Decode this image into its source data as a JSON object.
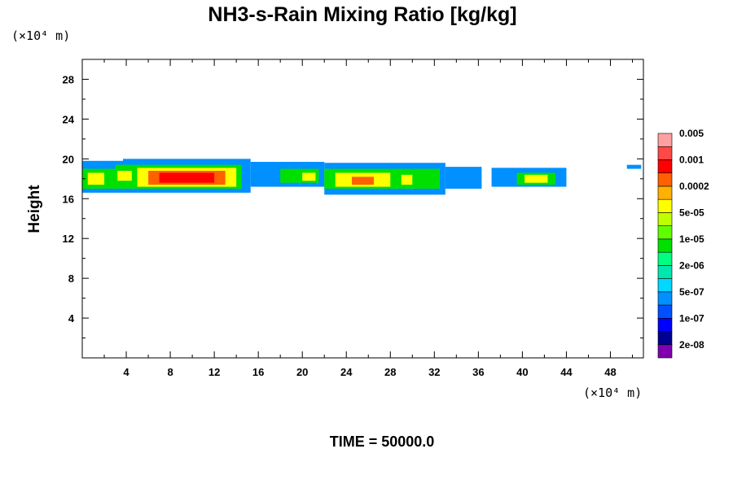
{
  "chart_data": {
    "type": "heatmap",
    "title": "NH3-s-Rain Mixing Ratio [kg/kg]",
    "ylabel": "Height",
    "x_unit_label": "(×10⁴ m)",
    "y_unit_label": "(×10⁴ m)",
    "footer": "TIME = 50000.0",
    "xlim": [
      0,
      51
    ],
    "ylim": [
      0,
      30
    ],
    "x_ticks": [
      4,
      8,
      12,
      16,
      20,
      24,
      28,
      32,
      36,
      40,
      44,
      48
    ],
    "y_ticks": [
      4,
      8,
      12,
      16,
      20,
      24,
      28
    ],
    "x_tick_labels": [
      "4",
      "8",
      "12",
      "16",
      "20",
      "24",
      "28",
      "32",
      "36",
      "40",
      "44",
      "48"
    ],
    "y_tick_labels": [
      "4",
      "8",
      "12",
      "16",
      "20",
      "24",
      "28"
    ],
    "grid": false,
    "legend_position": "right",
    "colorbar": {
      "colors": [
        "#8000b0",
        "#000090",
        "#0000ff",
        "#0050ff",
        "#0090ff",
        "#00d8ff",
        "#00e8b0",
        "#00ff80",
        "#00e000",
        "#60ff00",
        "#c0ff00",
        "#ffff00",
        "#ffb000",
        "#ff6000",
        "#ff0000",
        "#ff4848",
        "#ffa0a0"
      ],
      "labels": [
        "2e-08",
        "1e-07",
        "5e-07",
        "2e-06",
        "1e-05",
        "5e-05",
        "0.0002",
        "0.001",
        "0.005"
      ]
    },
    "cells": [
      {
        "x0": 0.0,
        "x1": 3.7,
        "y0": 16.6,
        "y1": 19.8,
        "level": 4
      },
      {
        "x0": 3.7,
        "x1": 15.3,
        "y0": 16.6,
        "y1": 20.0,
        "level": 4
      },
      {
        "x0": 15.3,
        "x1": 22.0,
        "y0": 17.2,
        "y1": 19.7,
        "level": 4
      },
      {
        "x0": 22.0,
        "x1": 33.0,
        "y0": 16.4,
        "y1": 19.6,
        "level": 4
      },
      {
        "x0": 33.0,
        "x1": 36.3,
        "y0": 17.0,
        "y1": 19.2,
        "level": 4
      },
      {
        "x0": 37.2,
        "x1": 44.0,
        "y0": 17.2,
        "y1": 19.1,
        "level": 4
      },
      {
        "x0": 0.0,
        "x1": 3.0,
        "y0": 17.0,
        "y1": 19.0,
        "level": 8
      },
      {
        "x0": 3.0,
        "x1": 14.5,
        "y0": 17.0,
        "y1": 19.4,
        "level": 8
      },
      {
        "x0": 18.0,
        "x1": 21.5,
        "y0": 17.6,
        "y1": 19.0,
        "level": 8
      },
      {
        "x0": 22.0,
        "x1": 32.5,
        "y0": 17.0,
        "y1": 19.0,
        "level": 8
      },
      {
        "x0": 39.5,
        "x1": 43.0,
        "y0": 17.4,
        "y1": 18.6,
        "level": 8
      },
      {
        "x0": 0.5,
        "x1": 2.0,
        "y0": 17.4,
        "y1": 18.6,
        "level": 11
      },
      {
        "x0": 3.2,
        "x1": 4.5,
        "y0": 17.8,
        "y1": 18.8,
        "level": 11
      },
      {
        "x0": 5.0,
        "x1": 14.0,
        "y0": 17.2,
        "y1": 19.1,
        "level": 11
      },
      {
        "x0": 20.0,
        "x1": 21.2,
        "y0": 17.8,
        "y1": 18.6,
        "level": 11
      },
      {
        "x0": 23.0,
        "x1": 28.0,
        "y0": 17.2,
        "y1": 18.6,
        "level": 11
      },
      {
        "x0": 29.0,
        "x1": 30.0,
        "y0": 17.4,
        "y1": 18.4,
        "level": 11
      },
      {
        "x0": 40.2,
        "x1": 42.3,
        "y0": 17.6,
        "y1": 18.4,
        "level": 11
      },
      {
        "x0": 6.0,
        "x1": 13.0,
        "y0": 17.4,
        "y1": 18.8,
        "level": 13
      },
      {
        "x0": 24.5,
        "x1": 26.5,
        "y0": 17.4,
        "y1": 18.2,
        "level": 13
      },
      {
        "x0": 7.0,
        "x1": 12.0,
        "y0": 17.6,
        "y1": 18.6,
        "level": 14
      },
      {
        "x0": 49.5,
        "x1": 50.8,
        "y0": 19.0,
        "y1": 19.4,
        "level": 4
      }
    ]
  }
}
